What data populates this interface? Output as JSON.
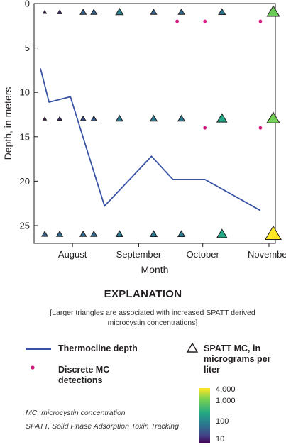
{
  "chart_data": {
    "type": "scatter",
    "xlabel": "Month",
    "ylabel": "Depth, in meters",
    "x_ticks": [
      {
        "label": "August",
        "date": "2018-08-01"
      },
      {
        "label": "September",
        "date": "2018-09-01"
      },
      {
        "label": "October",
        "date": "2018-10-01"
      },
      {
        "label": "November",
        "date": "2018-11-01"
      }
    ],
    "y_ticks": [
      0,
      5,
      10,
      15,
      20,
      25
    ],
    "ylim": [
      0,
      27
    ],
    "y_inverted": true,
    "xlim": [
      "2018-07-14",
      "2018-11-04"
    ],
    "thermocline": {
      "name": "Thermocline depth",
      "color": "#3953a4",
      "points": [
        {
          "date": "2018-07-17",
          "depth": 7.3
        },
        {
          "date": "2018-07-21",
          "depth": 11.1
        },
        {
          "date": "2018-07-31",
          "depth": 10.5
        },
        {
          "date": "2018-08-16",
          "depth": 22.8
        },
        {
          "date": "2018-09-07",
          "depth": 17.2
        },
        {
          "date": "2018-09-17",
          "depth": 19.8
        },
        {
          "date": "2018-10-02",
          "depth": 19.8
        },
        {
          "date": "2018-10-28",
          "depth": 23.3
        }
      ]
    },
    "discrete_mc": {
      "name": "Discrete MC detections",
      "color": "#d6177e",
      "points": [
        {
          "date": "2018-09-19",
          "depth": 2
        },
        {
          "date": "2018-10-02",
          "depth": 2
        },
        {
          "date": "2018-10-28",
          "depth": 2
        },
        {
          "date": "2018-10-02",
          "depth": 14
        },
        {
          "date": "2018-10-28",
          "depth": 14
        }
      ]
    },
    "spatt_mc": {
      "name": "SPATT MC, in micrograms per liter",
      "depths": [
        1,
        13,
        26
      ],
      "dates": [
        "2018-07-19",
        "2018-07-26",
        "2018-08-06",
        "2018-08-11",
        "2018-08-23",
        "2018-09-08",
        "2018-09-21",
        "2018-10-10",
        "2018-11-03"
      ],
      "values_by_depth": [
        [
          12,
          18,
          40,
          40,
          80,
          40,
          45,
          60,
          800
        ],
        [
          12,
          18,
          30,
          35,
          60,
          60,
          60,
          250,
          900
        ],
        [
          40,
          45,
          45,
          45,
          60,
          60,
          60,
          250,
          4000
        ]
      ]
    },
    "colorbar": {
      "ticks": [
        {
          "label": "4,000",
          "value": 4000
        },
        {
          "label": "1,000",
          "value": 1000
        },
        {
          "label": "100",
          "value": 100
        },
        {
          "label": "10",
          "value": 10
        }
      ],
      "colors": [
        "#fde725",
        "#7ad151",
        "#22a884",
        "#2a788e",
        "#414487",
        "#440154"
      ]
    }
  },
  "explanation": {
    "title": "EXPLANATION",
    "note": "[Larger triangles are associated with increased SPATT derived microcystin concentrations]"
  },
  "legend": {
    "thermocline": "Thermocline depth",
    "discrete": "Discrete MC detections",
    "spatt": "SPATT MC, in micrograms per liter"
  },
  "footnotes": {
    "mc": "MC, microcystin concentration",
    "spatt": "SPATT, Solid Phase Adsorption Toxin Tracking"
  }
}
